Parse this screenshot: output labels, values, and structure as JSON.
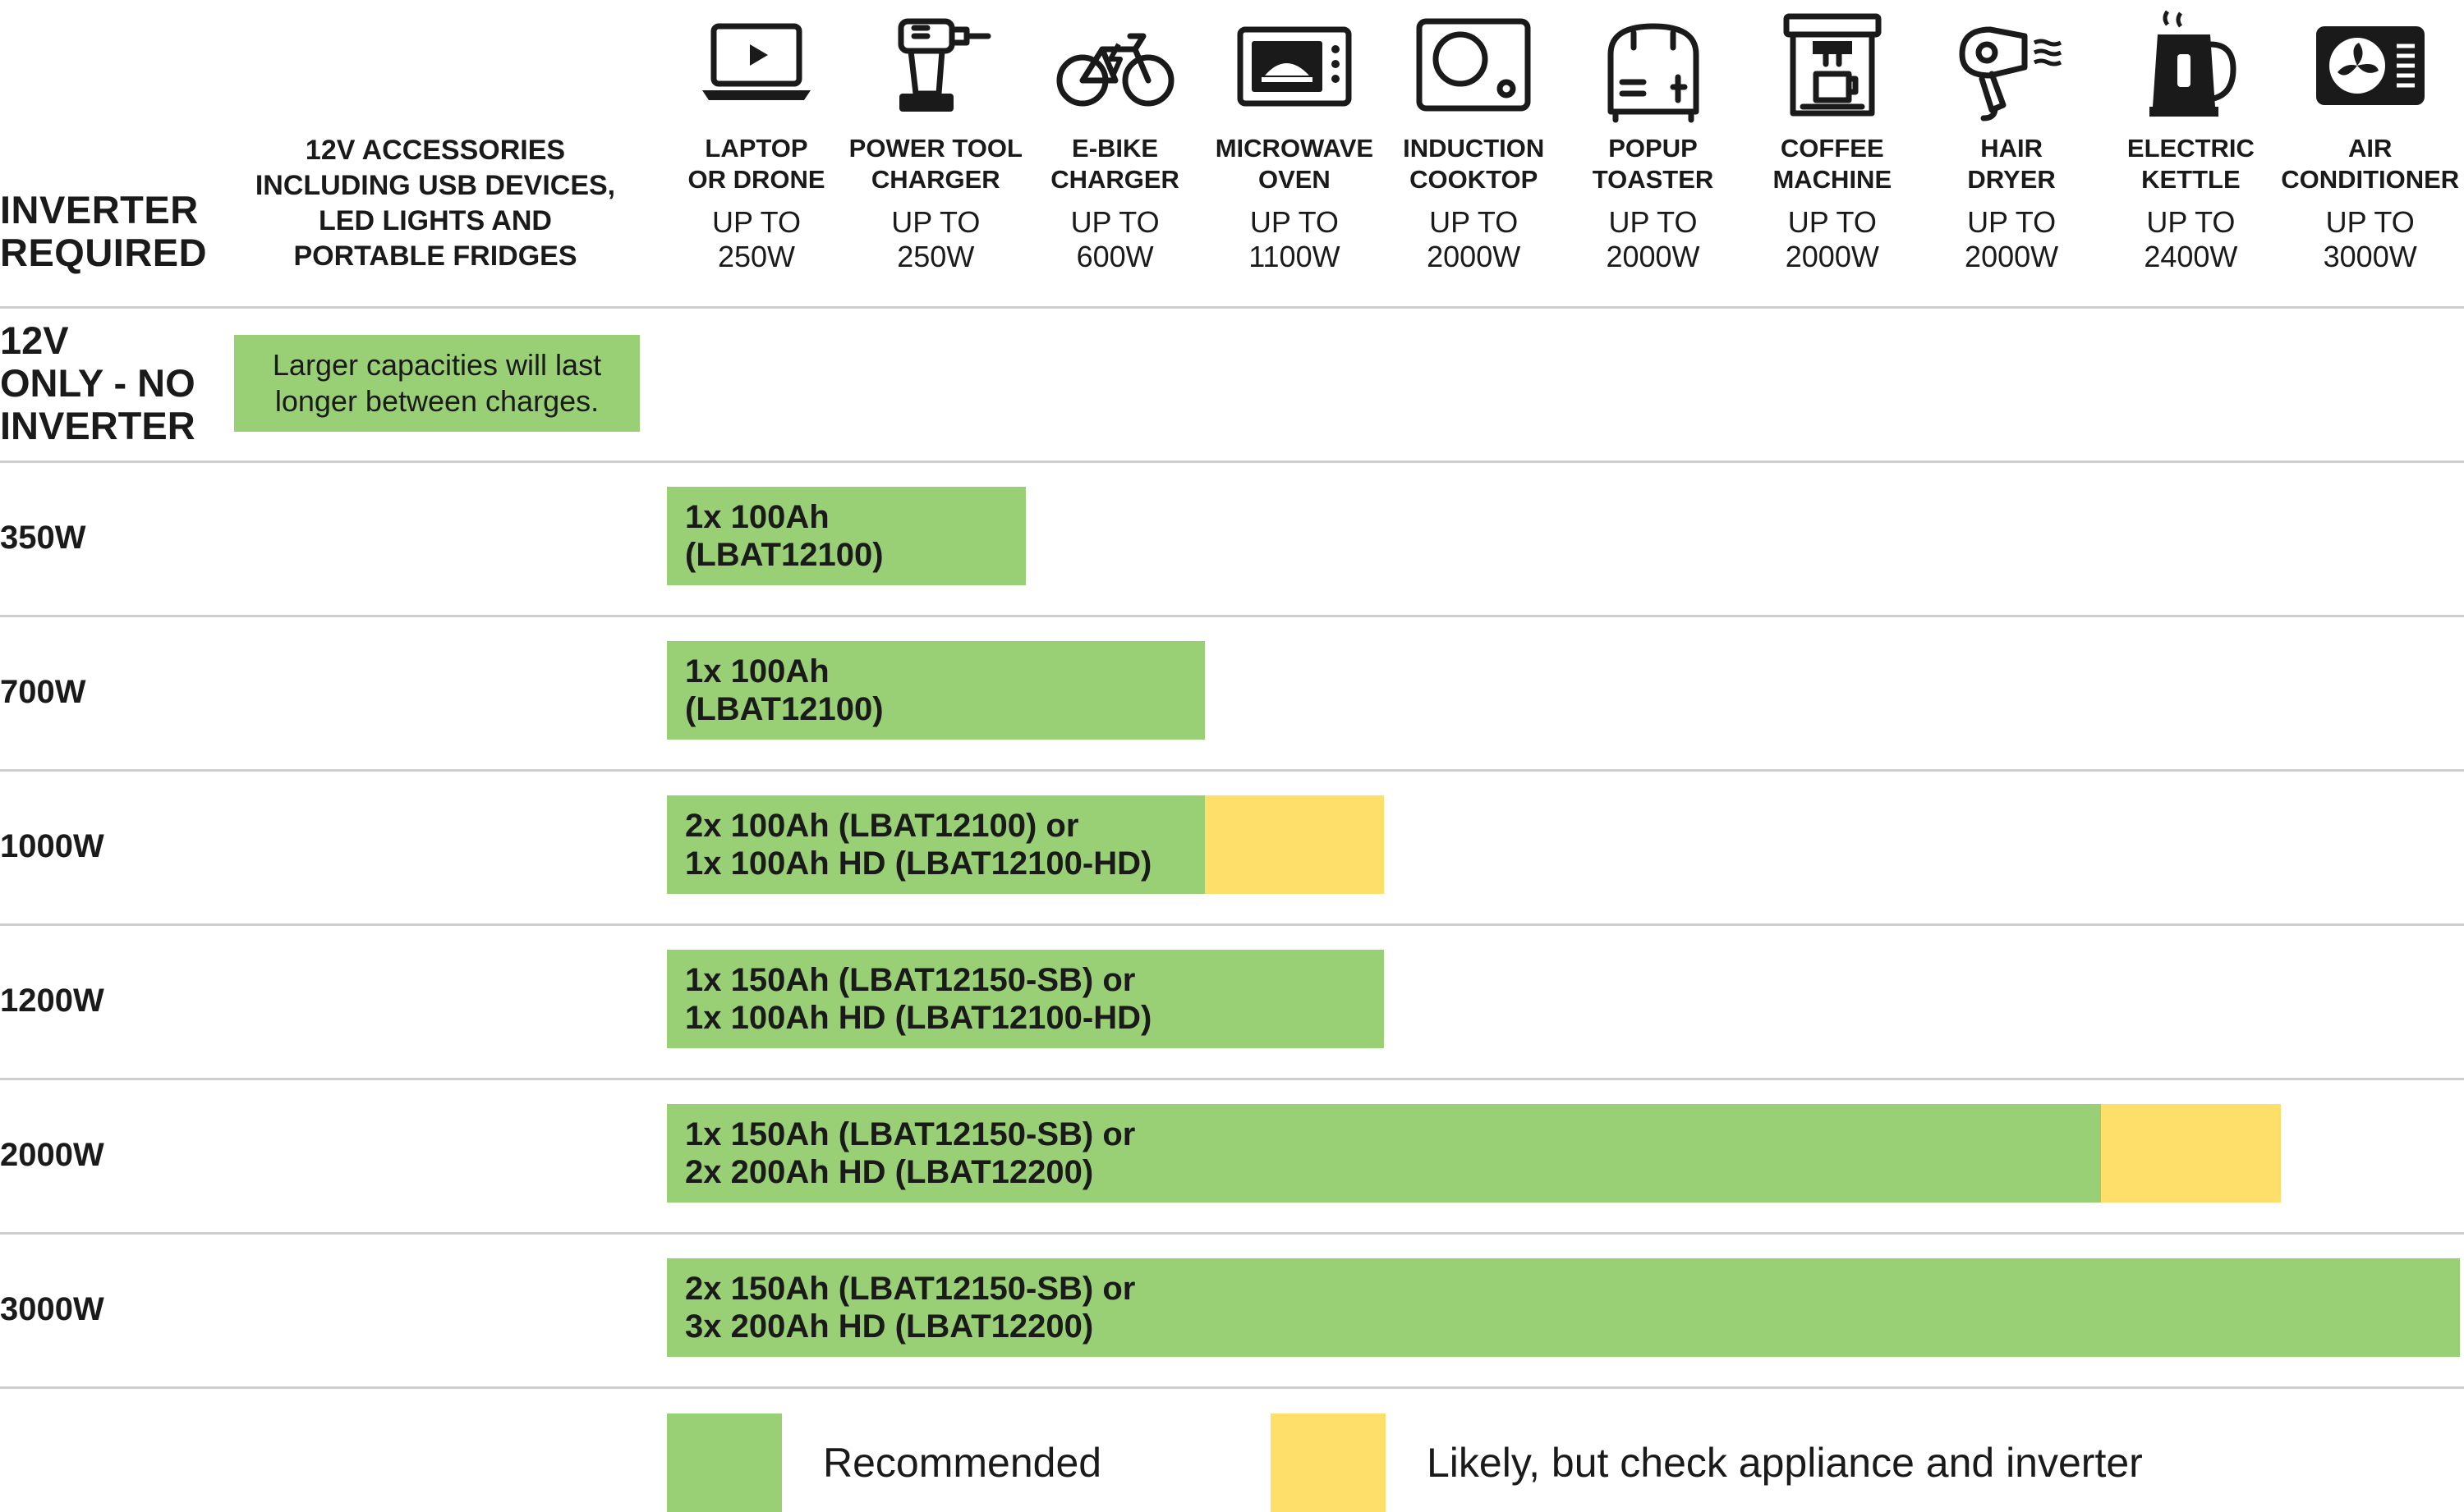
{
  "chart_data": {
    "type": "table",
    "title": "",
    "header_label": [
      "INVERTER",
      "REQUIRED"
    ],
    "accessories_header": [
      "12V ACCESSORIES",
      "INCLUDING USB DEVICES,",
      "LED LIGHTS AND",
      "PORTABLE FRIDGES"
    ],
    "appliances": [
      {
        "name": [
          "LAPTOP",
          "OR DRONE"
        ],
        "power": [
          "UP TO",
          "250W"
        ],
        "watts": 250,
        "icon": "laptop-icon"
      },
      {
        "name": [
          "POWER TOOL",
          "CHARGER"
        ],
        "power": [
          "UP TO",
          "250W"
        ],
        "watts": 250,
        "icon": "drill-icon"
      },
      {
        "name": [
          "E-BIKE",
          "CHARGER"
        ],
        "power": [
          "UP TO",
          "600W"
        ],
        "watts": 600,
        "icon": "ebike-icon"
      },
      {
        "name": [
          "MICROWAVE",
          "OVEN"
        ],
        "power": [
          "UP TO",
          "1100W"
        ],
        "watts": 1100,
        "icon": "microwave-icon"
      },
      {
        "name": [
          "INDUCTION",
          "COOKTOP"
        ],
        "power": [
          "UP TO",
          "2000W"
        ],
        "watts": 2000,
        "icon": "cooktop-icon"
      },
      {
        "name": [
          "POPUP",
          "TOASTER"
        ],
        "power": [
          "UP TO",
          "2000W"
        ],
        "watts": 2000,
        "icon": "toaster-icon"
      },
      {
        "name": [
          "COFFEE",
          "MACHINE"
        ],
        "power": [
          "UP TO",
          "2000W"
        ],
        "watts": 2000,
        "icon": "coffee-machine-icon"
      },
      {
        "name": [
          "HAIR",
          "DRYER"
        ],
        "power": [
          "UP TO",
          "2000W"
        ],
        "watts": 2000,
        "icon": "hair-dryer-icon"
      },
      {
        "name": [
          "ELECTRIC",
          "KETTLE"
        ],
        "power": [
          "UP TO",
          "2400W"
        ],
        "watts": 2400,
        "icon": "kettle-icon"
      },
      {
        "name": [
          "AIR",
          "CONDITIONER"
        ],
        "power": [
          "UP TO",
          "3000W"
        ],
        "watts": 3000,
        "icon": "air-conditioner-icon"
      }
    ],
    "rows": [
      {
        "inverter": [
          "12V",
          "ONLY - NO",
          "INVERTER"
        ],
        "note": [
          "Larger capacities will last",
          "longer between charges."
        ],
        "recommended_through": 0,
        "likely_through": 0,
        "battery": []
      },
      {
        "inverter": [
          "350W"
        ],
        "recommended_through": 2,
        "likely_through": 2,
        "battery": [
          "1x 100Ah",
          "(LBAT12100)"
        ]
      },
      {
        "inverter": [
          "700W"
        ],
        "recommended_through": 3,
        "likely_through": 3,
        "battery": [
          "1x 100Ah",
          "(LBAT12100)"
        ]
      },
      {
        "inverter": [
          "1000W"
        ],
        "recommended_through": 3,
        "likely_through": 4,
        "battery": [
          "2x 100Ah (LBAT12100) or",
          "1x 100Ah HD (LBAT12100-HD)"
        ]
      },
      {
        "inverter": [
          "1200W"
        ],
        "recommended_through": 4,
        "likely_through": 4,
        "battery": [
          "1x 150Ah (LBAT12150-SB) or",
          "1x 100Ah HD (LBAT12100-HD)"
        ]
      },
      {
        "inverter": [
          "2000W"
        ],
        "recommended_through": 8,
        "likely_through": 9,
        "battery": [
          "1x 150Ah (LBAT12150-SB) or",
          "2x 200Ah HD (LBAT12200)"
        ]
      },
      {
        "inverter": [
          "3000W"
        ],
        "recommended_through": 10,
        "likely_through": 10,
        "battery": [
          "2x 150Ah (LBAT12150-SB) or",
          "3x 200Ah HD (LBAT12200)"
        ]
      }
    ],
    "legend": [
      {
        "label": "Recommended",
        "color": "#99cf75"
      },
      {
        "label": "Likely, but check appliance and inverter",
        "color": "#fddf6a"
      }
    ]
  },
  "colors": {
    "recommended": "#99cf75",
    "likely": "#fddf6a",
    "divider": "#cfcfcf",
    "icon": "#1a1a1a"
  }
}
